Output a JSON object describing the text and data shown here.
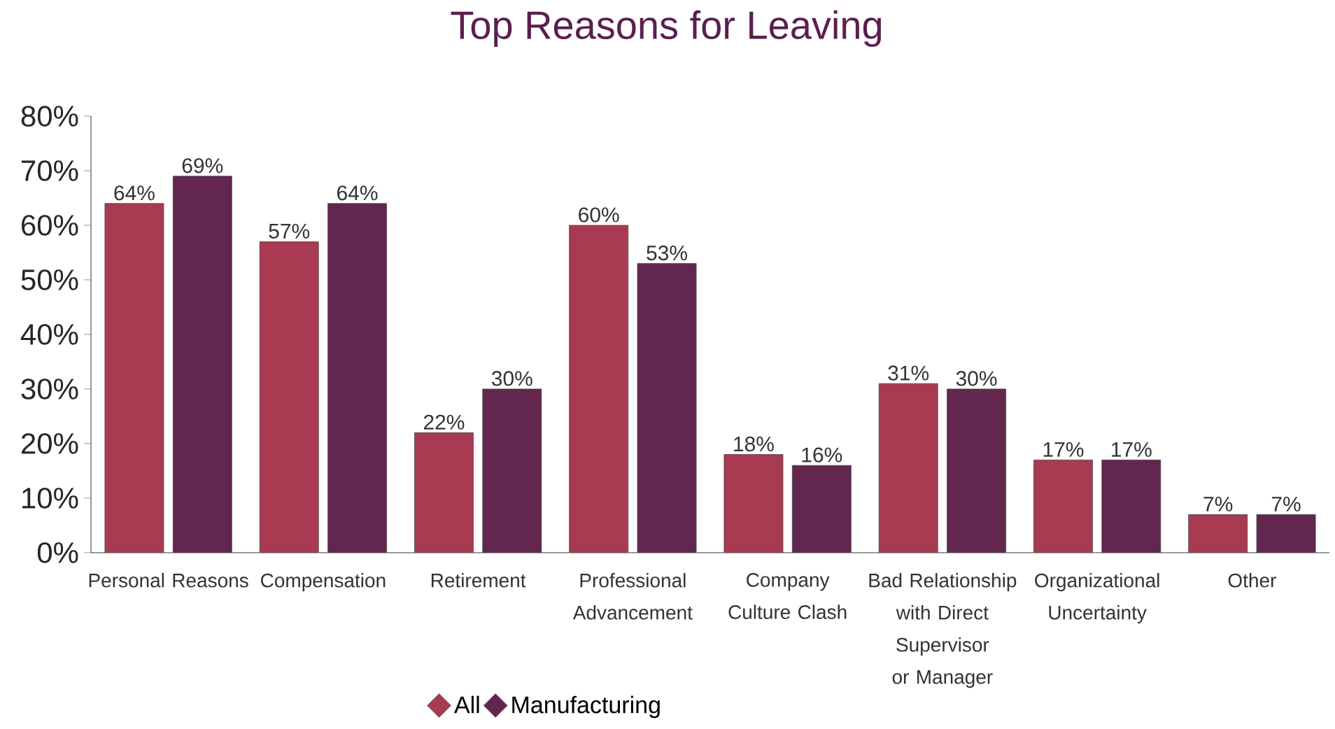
{
  "chart_data": {
    "type": "bar",
    "title": "Top Reasons for Leaving",
    "categories": [
      "Personal Reasons",
      "Compensation",
      "Retirement",
      "Professional Advancement",
      "Company Culture Clash",
      "Bad Relationship with Direct Supervisor or Manager",
      "Organizational Uncertainty",
      "Other"
    ],
    "series": [
      {
        "name": "All",
        "color": "#a83a52",
        "values": [
          64,
          57,
          22,
          60,
          18,
          31,
          17,
          7
        ],
        "value_labels": [
          "64%",
          "57%",
          "22%",
          "60%",
          "18%",
          "31%",
          "17%",
          "7%"
        ]
      },
      {
        "name": "Manufacturing",
        "color": "#62264f",
        "values": [
          69,
          64,
          30,
          53,
          16,
          30,
          17,
          7
        ],
        "value_labels": [
          "69%",
          "64%",
          "30%",
          "53%",
          "16%",
          "30%",
          "17%",
          "7%"
        ]
      }
    ],
    "ylim": [
      0,
      80
    ],
    "yticks": [
      {
        "value": 0,
        "label": "0%"
      },
      {
        "value": 10,
        "label": "10%"
      },
      {
        "value": 20,
        "label": "20%"
      },
      {
        "value": 30,
        "label": "30%"
      },
      {
        "value": 40,
        "label": "40%"
      },
      {
        "value": 50,
        "label": "50%"
      },
      {
        "value": 60,
        "label": "60%"
      },
      {
        "value": 70,
        "label": "70%"
      },
      {
        "value": 80,
        "label": "80%"
      }
    ],
    "legend": "bottom",
    "grid": false
  }
}
